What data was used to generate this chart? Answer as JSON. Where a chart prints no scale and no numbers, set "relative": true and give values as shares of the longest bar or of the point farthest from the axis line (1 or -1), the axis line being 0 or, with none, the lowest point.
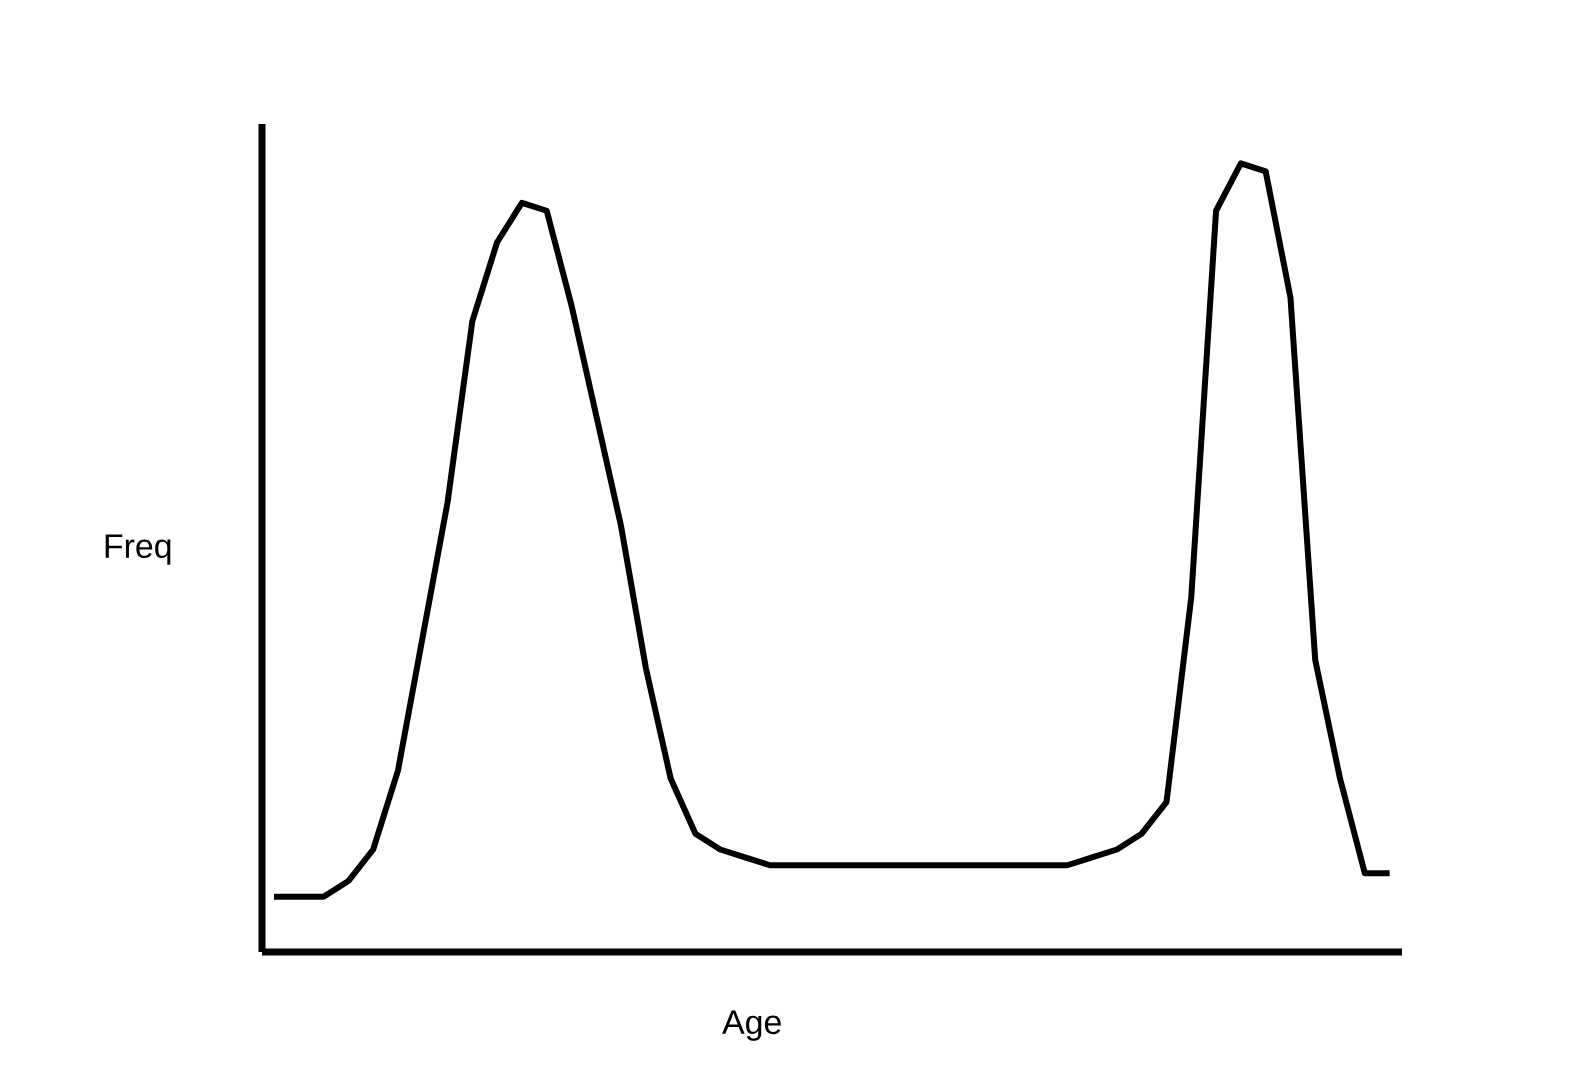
{
  "chart_data": {
    "type": "line",
    "xlabel": "Age",
    "ylabel": "Freq",
    "relative": true,
    "color": "#000000",
    "categories": [
      null,
      null,
      null,
      null,
      null,
      null,
      null,
      null,
      null,
      null,
      null,
      null,
      null,
      null,
      null,
      null,
      null,
      null,
      null,
      null,
      null,
      null,
      null,
      null,
      null,
      null,
      null,
      null,
      null,
      null,
      null,
      null,
      null,
      null,
      null,
      null,
      null,
      null,
      null,
      null,
      null,
      null,
      null,
      null,
      null,
      null
    ],
    "values": [
      0.07,
      0.07,
      0.07,
      0.09,
      0.13,
      0.23,
      0.4,
      0.57,
      0.8,
      0.9,
      0.95,
      0.94,
      0.82,
      0.68,
      0.54,
      0.36,
      0.22,
      0.15,
      0.13,
      0.12,
      0.11,
      0.11,
      0.11,
      0.11,
      0.11,
      0.11,
      0.11,
      0.11,
      0.11,
      0.11,
      0.11,
      0.11,
      0.11,
      0.12,
      0.13,
      0.15,
      0.19,
      0.45,
      0.94,
      1.0,
      0.99,
      0.83,
      0.37,
      0.22,
      0.1,
      0.1
    ]
  }
}
